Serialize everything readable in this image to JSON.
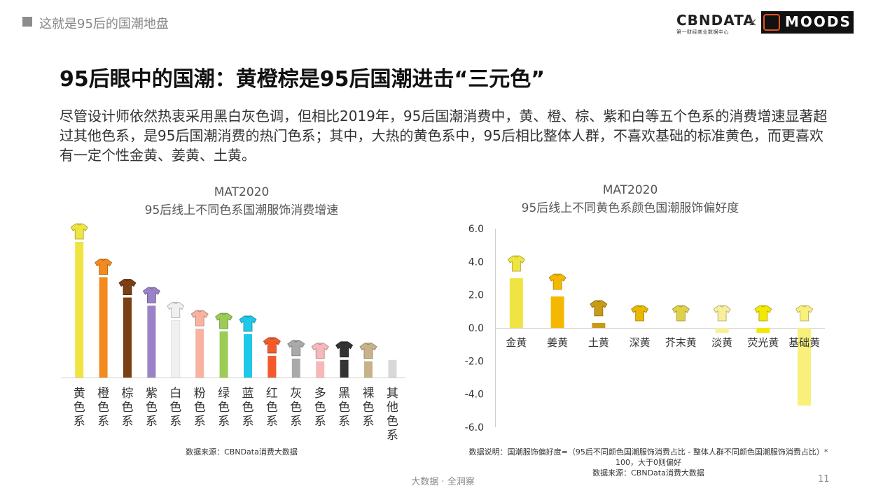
{
  "header": {
    "section_title": "这就是95后的国潮地盘"
  },
  "logo": {
    "cbn_text": "CBNDATA",
    "cbn_subtitle": "第一财经商业数据中心",
    "times": "×",
    "partner_text": "MOODS"
  },
  "title": "95后眼中的国潮：黄橙棕是95后国潮进击“三元色”",
  "description": "尽管设计师依然热衷采用黑白灰色调，但相比2019年，95后国潮消费中，黄、橙、棕、紫和白等五个色系的消费增速显著超过其他色系，是95后国潮消费的热门色系；其中，大热的黄色系中，95后相比整体人群，不喜欢基础的标准黄色，而更喜欢有一定个性金黄、姜黄、土黄。",
  "chart1_title": {
    "line1": "MAT2020",
    "line2": "95后线上不同色系国潮服饰消费增速"
  },
  "chart2_title": {
    "line1": "MAT2020",
    "line2": "95后线上不同黄色系颜色国潮服饰偏好度"
  },
  "chart_data": [
    {
      "type": "bar",
      "title": "95后线上不同色系国潮服饰消费增速",
      "categories": [
        "黄色系",
        "橙色系",
        "棕色系",
        "紫色系",
        "白色系",
        "粉色系",
        "绿色系",
        "蓝色系",
        "红色系",
        "灰色系",
        "多色系",
        "黑色系",
        "裸色系",
        "其他色系"
      ],
      "values": [
        100,
        74,
        59,
        53,
        42,
        36,
        34,
        32,
        16,
        14,
        12,
        13,
        12,
        13
      ],
      "colors": [
        "#f0e442",
        "#f28a1e",
        "#7a3f12",
        "#9b82c6",
        "#f0f0f0",
        "#f8b3a0",
        "#9ccc55",
        "#1ec8e8",
        "#f25a2a",
        "#a9a9a9",
        "#f6b8b8",
        "#333333",
        "#c8b28a",
        "#d8d8d8"
      ],
      "icons": [
        "yellow-shirt-icon",
        "orange-jacket-icon",
        "brown-tshirt-icon",
        "purple-tshirt-icon",
        "white-jacket-icon",
        "pink-tshirt-icon",
        "green-tshirt-icon",
        "blue-jacket-icon",
        "red-sweater-icon",
        "gray-sweater-icon",
        "striped-sweater-icon",
        "black-jacket-icon",
        "beige-jacket-icon",
        ""
      ],
      "ylim": [
        0,
        100
      ],
      "source": "数据来源：CBNData消费大数据"
    },
    {
      "type": "bar",
      "title": "95后线上不同黄色系颜色国潮服饰偏好度",
      "categories": [
        "金黄",
        "姜黄",
        "土黄",
        "深黄",
        "芥末黄",
        "淡黄",
        "荧光黄",
        "基础黄"
      ],
      "values": [
        3.0,
        1.9,
        0.3,
        0.0,
        0.0,
        -0.3,
        -0.3,
        -4.7
      ],
      "colors": [
        "#f0e442",
        "#f5b800",
        "#c99a16",
        "#e8b800",
        "#e0d04a",
        "#f8ee9c",
        "#f3e800",
        "#f8f07a"
      ],
      "icons": [
        "golden-hoodie-icon",
        "ginger-tshirt-icon",
        "earth-jacket-icon",
        "deep-yellow-tshirt-icon",
        "mustard-shirt-icon",
        "light-yellow-tshirt-icon",
        "neon-sweater-icon",
        "basic-yellow-tshirt-icon"
      ],
      "ylim": [
        -6.0,
        6.0
      ],
      "yticks": [
        "6.0",
        "4.0",
        "2.0",
        "0.0",
        "-2.0",
        "-4.0",
        "-6.0"
      ],
      "note": "数据说明：国潮服饰偏好度=（95后不同颜色国潮服饰消费占比 - 整体人群不同颜色国潮服饰消费占比）* 100，大于0则偏好",
      "source": "数据来源：CBNData消费大数据"
    }
  ],
  "footer": {
    "text": "大数据 · 全洞察",
    "page": "11"
  }
}
